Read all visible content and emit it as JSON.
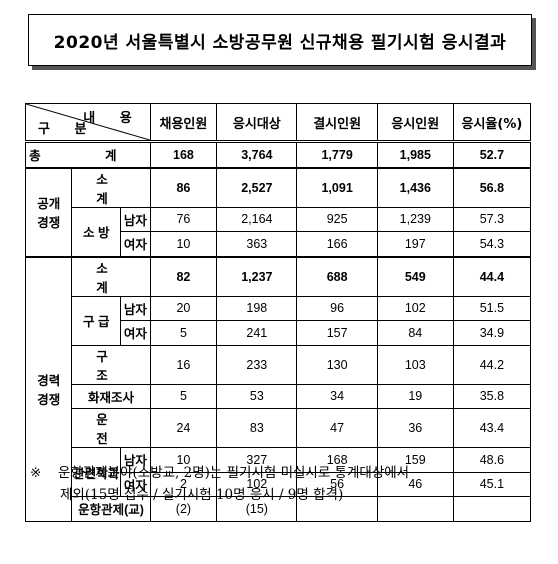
{
  "title": "2020년 서울특별시 소방공무원 신규채용 필기시험 응시결과",
  "header": {
    "diag_top": "내 용",
    "diag_bottom": "구 분",
    "columns": [
      "채용인원",
      "응시대상",
      "결시인원",
      "응시인원",
      "응시율(%)"
    ]
  },
  "total": {
    "label": "총 계",
    "values": [
      "168",
      "3,764",
      "1,779",
      "1,985",
      "52.7"
    ]
  },
  "open": {
    "group": "공개\n경쟁",
    "subtotal": {
      "label": "소 계",
      "values": [
        "86",
        "2,527",
        "1,091",
        "1,436",
        "56.8"
      ]
    },
    "sobang": {
      "label": "소 방",
      "male": {
        "label": "남자",
        "values": [
          "76",
          "2,164",
          "925",
          "1,239",
          "57.3"
        ]
      },
      "female": {
        "label": "여자",
        "values": [
          "10",
          "363",
          "166",
          "197",
          "54.3"
        ]
      }
    }
  },
  "career": {
    "group": "경력\n경쟁",
    "subtotal": {
      "label": "소 계",
      "values": [
        "82",
        "1,237",
        "688",
        "549",
        "44.4"
      ]
    },
    "gugeup": {
      "label": "구 급",
      "male": {
        "label": "남자",
        "values": [
          "20",
          "198",
          "96",
          "102",
          "51.5"
        ]
      },
      "female": {
        "label": "여자",
        "values": [
          "5",
          "241",
          "157",
          "84",
          "34.9"
        ]
      }
    },
    "gujo": {
      "label": "구 조",
      "values": [
        "16",
        "233",
        "130",
        "103",
        "44.2"
      ]
    },
    "fire": {
      "label": "화재조사",
      "values": [
        "5",
        "53",
        "34",
        "19",
        "35.8"
      ]
    },
    "driver": {
      "label": "운 전",
      "values": [
        "24",
        "83",
        "47",
        "36",
        "43.4"
      ]
    },
    "related": {
      "label": "관련학과",
      "male": {
        "label": "남자",
        "values": [
          "10",
          "327",
          "168",
          "159",
          "48.6"
        ]
      },
      "female": {
        "label": "여자",
        "values": [
          "2",
          "102",
          "56",
          "46",
          "45.1"
        ]
      }
    },
    "control": {
      "label": "운항관제(교)",
      "values": [
        "(2)",
        "(15)",
        "",
        "",
        ""
      ]
    }
  },
  "note": {
    "mark": "※",
    "line1": "운항관제분야(소방교, 2명)는 필기시험 미실시로 통계대상에서",
    "line2": "제외(15명 접수 / 실기시험 10명 응시 / 9명 합격)"
  }
}
